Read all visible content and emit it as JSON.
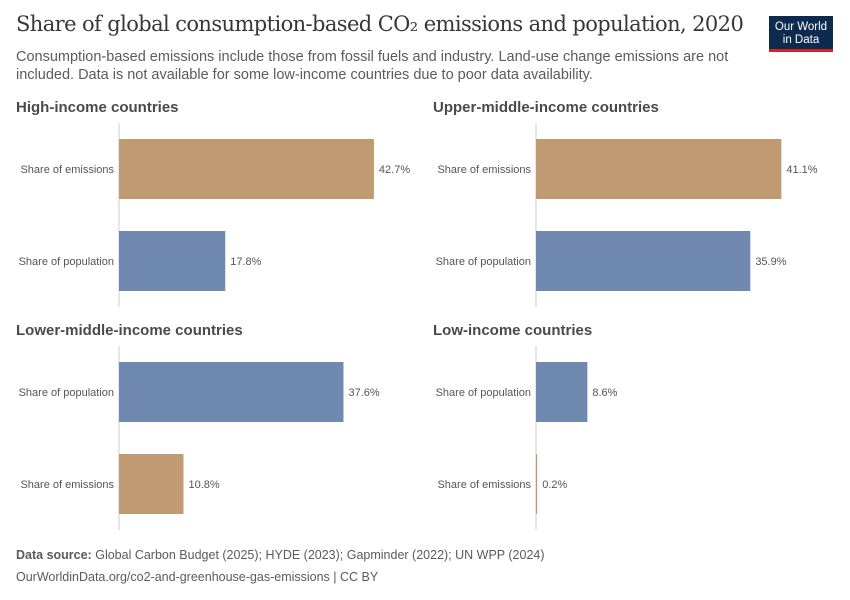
{
  "header": {
    "title": "Share of global consumption-based CO₂ emissions and population, 2020",
    "subtitle": "Consumption-based emissions include those from fossil fuels and industry. Land-use change emissions are not included. Data is not available for some low-income countries due to poor data availability.",
    "logo": "Our World in Data"
  },
  "footer": {
    "source_label": "Data source:",
    "source": "Global Carbon Budget (2025); HYDE (2023); Gapminder (2022); UN WPP (2024)",
    "url": "OurWorldinData.org/co2-and-greenhouse-gas-emissions | CC BY"
  },
  "colors": {
    "emissions": "#c09a70",
    "population": "#6f89b1"
  },
  "chart_data": [
    {
      "type": "bar",
      "orientation": "horizontal",
      "title": "High-income countries",
      "unit": "%",
      "categories": [
        "Share of emissions",
        "Share of population"
      ],
      "values": [
        42.7,
        17.8
      ]
    },
    {
      "type": "bar",
      "orientation": "horizontal",
      "title": "Upper-middle-income countries",
      "unit": "%",
      "categories": [
        "Share of emissions",
        "Share of population"
      ],
      "values": [
        41.1,
        35.9
      ]
    },
    {
      "type": "bar",
      "orientation": "horizontal",
      "title": "Lower-middle-income countries",
      "unit": "%",
      "categories": [
        "Share of population",
        "Share of emissions"
      ],
      "values": [
        37.6,
        10.8
      ]
    },
    {
      "type": "bar",
      "orientation": "horizontal",
      "title": "Low-income countries",
      "unit": "%",
      "categories": [
        "Share of population",
        "Share of emissions"
      ],
      "values": [
        8.6,
        0.2
      ]
    }
  ]
}
